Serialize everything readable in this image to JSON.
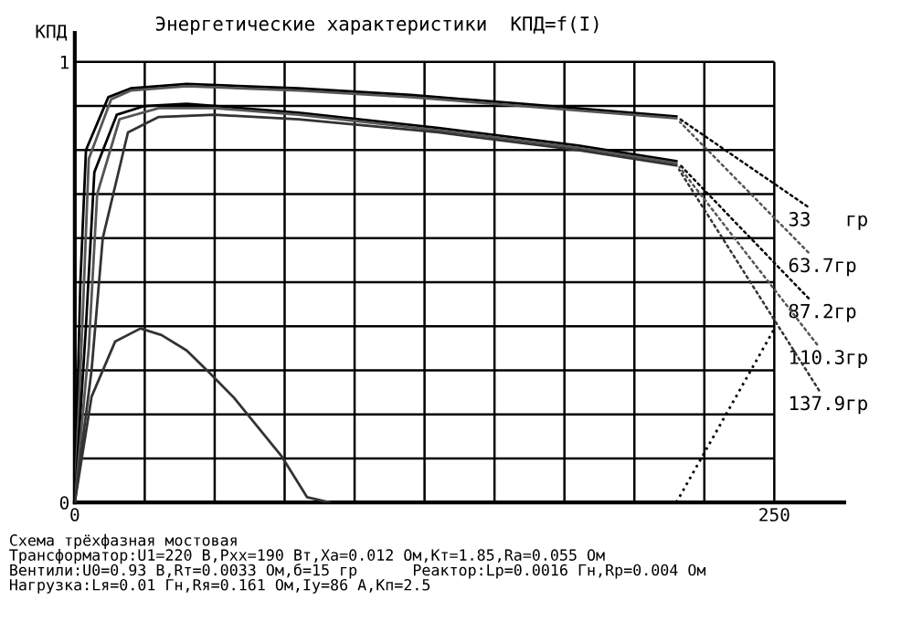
{
  "chart_data": {
    "type": "line",
    "title": "Энергетические характеристики  КПД=f(I)",
    "ylabel": "КПД",
    "xlim": [
      0,
      275
    ],
    "ylim": [
      0,
      1.066
    ],
    "xticks": [
      0,
      {
        "value": 25,
        "label": null
      },
      {
        "value": 50,
        "label": null
      },
      {
        "value": 75,
        "label": null
      },
      {
        "value": 100,
        "label": null
      },
      {
        "value": 125,
        "label": null
      },
      {
        "value": 150,
        "label": null
      },
      {
        "value": 175,
        "label": null
      },
      {
        "value": 200,
        "label": null
      },
      {
        "value": 225,
        "label": null
      },
      250
    ],
    "yticks": [
      0,
      {
        "value": 0.1,
        "label": null
      },
      {
        "value": 0.2,
        "label": null
      },
      {
        "value": 0.3,
        "label": null
      },
      {
        "value": 0.4,
        "label": null
      },
      {
        "value": 0.5,
        "label": null
      },
      {
        "value": 0.6,
        "label": null
      },
      {
        "value": 0.7,
        "label": null
      },
      {
        "value": 0.8,
        "label": null
      },
      {
        "value": 0.9,
        "label": null
      },
      1
    ],
    "grid": true,
    "legend": false,
    "marker": "none",
    "line_style": "solid",
    "series": [
      {
        "name": "33   гр",
        "color": "#000000",
        "x": [
          0,
          2,
          4,
          12,
          20,
          40,
          80,
          120,
          160,
          215
        ],
        "values": [
          0,
          0.5,
          0.8,
          0.92,
          0.94,
          0.95,
          0.94,
          0.925,
          0.905,
          0.876
        ]
      },
      {
        "name": "63.7гр",
        "color": "#555555",
        "x": [
          0,
          3,
          5,
          13,
          20,
          40,
          80,
          120,
          160,
          215
        ],
        "values": [
          0,
          0.45,
          0.78,
          0.915,
          0.935,
          0.945,
          0.935,
          0.92,
          0.9,
          0.872
        ]
      },
      {
        "name": "87.2гр",
        "color": "#000000",
        "x": [
          0,
          4,
          7,
          15,
          25,
          40,
          80,
          130,
          180,
          215
        ],
        "values": [
          0,
          0.4,
          0.75,
          0.88,
          0.9,
          0.905,
          0.885,
          0.85,
          0.81,
          0.775
        ]
      },
      {
        "name": "110.3гр",
        "color": "#555555",
        "x": [
          0,
          5,
          8,
          16,
          30,
          50,
          80,
          130,
          180,
          215
        ],
        "values": [
          0,
          0.35,
          0.7,
          0.87,
          0.895,
          0.895,
          0.88,
          0.845,
          0.805,
          0.77
        ]
      },
      {
        "name": "137.9гр",
        "color": "#333333",
        "x": [
          0,
          6,
          10,
          19,
          30,
          50,
          80,
          130,
          180,
          215
        ],
        "values": [
          0,
          0.3,
          0.6,
          0.84,
          0.875,
          0.88,
          0.87,
          0.84,
          0.8,
          0.765
        ]
      },
      {
        "color": "#333333",
        "x": [
          0,
          6,
          14.4,
          23.5,
          31,
          40,
          48,
          57,
          74,
          83,
          91
        ],
        "values": [
          0,
          0.24,
          0.365,
          0.395,
          0.38,
          0.345,
          0.295,
          0.237,
          0.104,
          0.012,
          0
        ]
      },
      {
        "color": "#000000",
        "line_style": "dotted",
        "x": [
          215,
          250
        ],
        "values": [
          0,
          0.394
        ]
      }
    ],
    "annotations": [
      "Схема трёхфазная мостовая",
      "Трансформатор:U1=220 В,Pxx=190 Вт,Xa=0.012 Ом,Kт=1.85,Ra=0.055 Ом",
      "Вентили:U0=0.93 В,Rт=0.0033 Ом,б=15 гр      Реактор:Lp=0.0016 Гн,Rp=0.004 Ом",
      "Нагрузка:Lя=0.01 Гн,Rя=0.161 Ом,Iу=86 А,Kп=2.5"
    ]
  }
}
